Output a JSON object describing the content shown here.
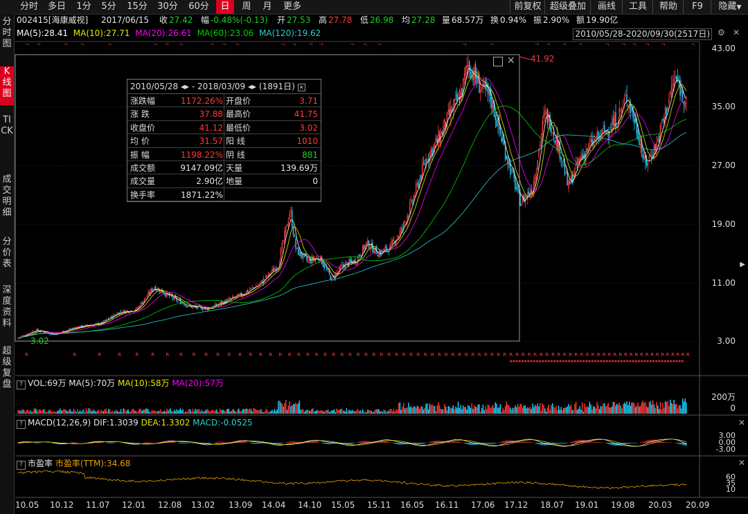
{
  "toolbar": {
    "periods": [
      "分时",
      "多日",
      "1分",
      "5分",
      "15分",
      "30分",
      "60分",
      "日",
      "周",
      "月",
      "更多"
    ],
    "right_items": [
      "前复权",
      "超级叠加",
      "画线",
      "工具",
      "帮助",
      "F9",
      "隐藏"
    ]
  },
  "left_tabs": [
    "分时图",
    "K线图",
    "TICK",
    "成交明细",
    "分价表",
    "深度资料",
    "超级复盘"
  ],
  "quote": {
    "code_name": "002415[海康威视]",
    "date": "2017/06/15",
    "close_label": "收",
    "close": "27.42",
    "change_label": "幅",
    "change": "-0.48%(-0.13)",
    "open_label": "开",
    "open": "27.53",
    "high_label": "高",
    "high": "27.78",
    "low_label": "低",
    "low": "26.98",
    "avg_label": "均",
    "avg": "27.28",
    "vol_label": "量",
    "vol": "68.57万",
    "turnover_label": "换",
    "turnover": "0.94%",
    "amp_label": "振",
    "amp": "2.90%",
    "amount_label": "额",
    "amount": "19.90亿"
  },
  "ma": {
    "ma5": "MA(5):28.41",
    "ma10": "MA(10):27.71",
    "ma20": "MA(20):26.61",
    "ma60": "MA(60):23.06",
    "ma120": "MA(120):19.62"
  },
  "range_text": "2010/05/28-2020/09/30(2517日)",
  "stats": {
    "header_start": "2010/05/28",
    "header_mid": "- 2018/03/09",
    "header_days": "(1891日)",
    "rows": [
      [
        "涨跌幅",
        "1172.26%",
        "开盘价",
        "3.71"
      ],
      [
        "涨  跌",
        "37.88",
        "最高价",
        "41.75"
      ],
      [
        "收盘价",
        "41.12",
        "最低价",
        "3.02"
      ],
      [
        "均  价",
        "31.57",
        "阳  线",
        "1010"
      ],
      [
        "振  幅",
        "1198.22%",
        "阴  线",
        "881"
      ],
      [
        "成交额",
        "9147.09亿",
        "天量",
        "139.69万"
      ],
      [
        "成交量",
        "2.90亿",
        "地量",
        "0"
      ],
      [
        "换手率",
        "1871.22%",
        "",
        ""
      ]
    ]
  },
  "price_axis": [
    "43.00",
    "35.00",
    "27.00",
    "19.00",
    "11.00",
    "3.00"
  ],
  "high_marker": "41.92",
  "low_marker": "3.02",
  "vol_panel": {
    "label": "VOL:69万",
    "ma5": "MA(5):70万",
    "ma10": "MA(10):58万",
    "ma20": "MA(20):57万",
    "axis": [
      "200万",
      "0"
    ]
  },
  "macd_panel": {
    "label": "MACD(12,26,9)",
    "dif": "DIF:1.3039",
    "dea": "DEA:1.3302",
    "macd": "MACD:-0.0525",
    "axis": [
      "3.00",
      "0.00",
      "-3.00"
    ]
  },
  "pe_panel": {
    "label": "市盈率",
    "ttm": "市盈率(TTM):34.68",
    "axis": [
      "60",
      "35",
      "10"
    ]
  },
  "x_axis": [
    "10.05",
    "10.12",
    "11.07",
    "12.01",
    "12.08",
    "13.02",
    "13.09",
    "14.04",
    "14.10",
    "15.05",
    "15.11",
    "16.05",
    "16.11",
    "17.06",
    "17.12",
    "18.07",
    "19.01",
    "19.08",
    "20.03",
    "20.09"
  ],
  "colors": {
    "up": "#ff3b3b",
    "down": "#1fd3ff",
    "ma5": "#ffffff",
    "ma10": "#e8e800",
    "ma20": "#ff00ff",
    "ma60": "#00d000",
    "ma120": "#29d0d0",
    "accent": "#d8001e"
  },
  "chart_data": {
    "type": "candlestick",
    "x_range": [
      "2010/05/28",
      "2020/09/30"
    ],
    "ylim": [
      3.0,
      43.0
    ],
    "close_trend": [
      [
        0,
        3.5
      ],
      [
        3,
        4.6
      ],
      [
        6,
        4.0
      ],
      [
        10,
        5.0
      ],
      [
        14,
        5.5
      ],
      [
        17,
        7.0
      ],
      [
        20,
        7.4
      ],
      [
        23,
        10.5
      ],
      [
        26,
        9.0
      ],
      [
        29,
        7.8
      ],
      [
        32,
        7.5
      ],
      [
        35,
        8.5
      ],
      [
        38,
        9.5
      ],
      [
        41,
        11.0
      ],
      [
        44,
        13.5
      ],
      [
        46,
        21.0
      ],
      [
        47,
        15.5
      ],
      [
        49,
        14.0
      ],
      [
        51,
        14.5
      ],
      [
        53,
        11.5
      ],
      [
        55,
        13.5
      ],
      [
        57,
        14.0
      ],
      [
        59,
        16.5
      ],
      [
        61,
        15.0
      ],
      [
        63,
        16.0
      ],
      [
        65,
        18.5
      ],
      [
        67,
        23.0
      ],
      [
        69,
        28.0
      ],
      [
        71,
        30.5
      ],
      [
        73,
        34.0
      ],
      [
        75,
        37.0
      ],
      [
        76,
        41.0
      ],
      [
        78,
        38.0
      ],
      [
        80,
        36.0
      ],
      [
        82,
        30.0
      ],
      [
        84,
        24.5
      ],
      [
        85,
        22.0
      ],
      [
        87,
        24.0
      ],
      [
        89,
        34.0
      ],
      [
        90,
        33.0
      ],
      [
        92,
        28.0
      ],
      [
        93,
        24.0
      ],
      [
        95,
        28.0
      ],
      [
        97,
        30.0
      ],
      [
        99,
        31.5
      ],
      [
        101,
        33.0
      ],
      [
        103,
        36.5
      ],
      [
        105,
        31.0
      ],
      [
        106,
        27.0
      ],
      [
        108,
        30.0
      ],
      [
        109,
        33.0
      ],
      [
        111,
        39.0
      ],
      [
        113,
        36.0
      ]
    ]
  }
}
